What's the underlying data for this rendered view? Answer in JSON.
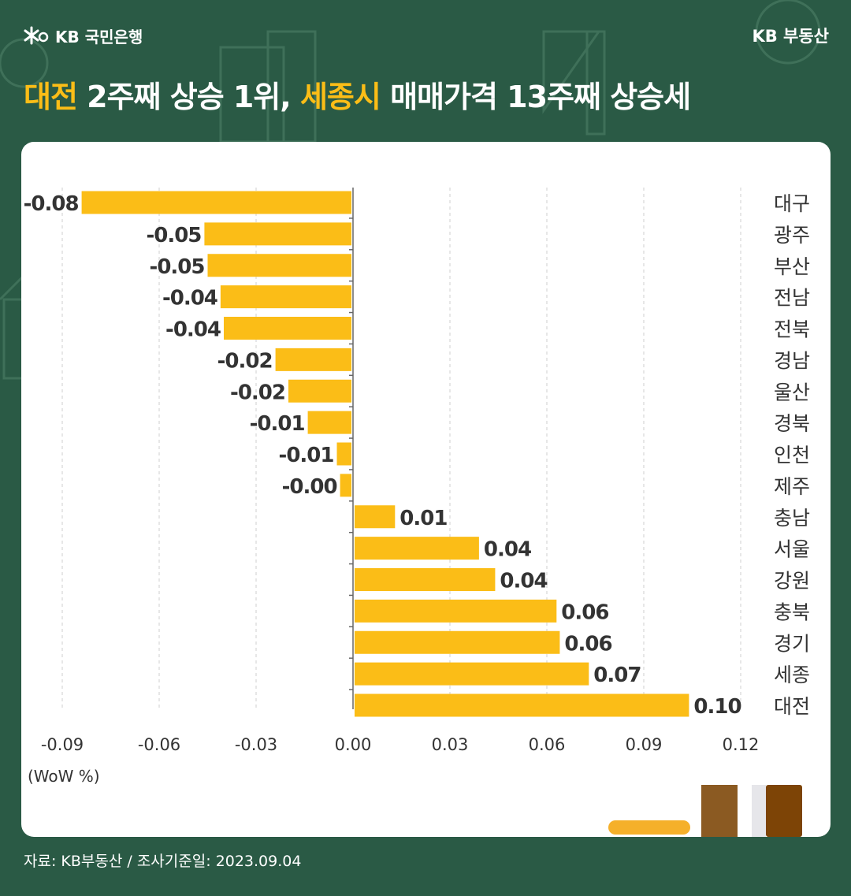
{
  "header": {
    "bank_logo_text": "KB 국민은행",
    "brand": "KB 부동산"
  },
  "title": {
    "part1": "대전",
    "part2": " 2주째 상승 1위, ",
    "part3": "세종시",
    "part4": " 매매가격 13주째 상승세"
  },
  "colors": {
    "background": "#2a5a45",
    "accent": "#fbbd17",
    "bar": "#fbbd17",
    "card": "#ffffff"
  },
  "chart_data": {
    "type": "bar",
    "orientation": "horizontal",
    "categories": [
      "대구",
      "광주",
      "부산",
      "전남",
      "전북",
      "경남",
      "울산",
      "경북",
      "인천",
      "제주",
      "충남",
      "서울",
      "강원",
      "충북",
      "경기",
      "세종",
      "대전"
    ],
    "values": [
      -0.084,
      -0.046,
      -0.045,
      -0.041,
      -0.04,
      -0.024,
      -0.02,
      -0.014,
      -0.005,
      -0.004,
      0.013,
      0.039,
      0.044,
      0.063,
      0.064,
      0.073,
      0.104
    ],
    "value_labels": [
      "-0.08",
      "-0.05",
      "-0.05",
      "-0.04",
      "-0.04",
      "-0.02",
      "-0.02",
      "-0.01",
      "-0.01",
      "-0.00",
      "0.01",
      "0.04",
      "0.04",
      "0.06",
      "0.06",
      "0.07",
      "0.10"
    ],
    "xticks": [
      "-0.09",
      "-0.06",
      "-0.03",
      "0.00",
      "0.03",
      "0.06",
      "0.09",
      "0.12"
    ],
    "xtick_values": [
      -0.09,
      -0.06,
      -0.03,
      0,
      0.03,
      0.06,
      0.09,
      0.12
    ],
    "xlim": [
      -0.09,
      0.12
    ],
    "unit_label": "(WoW %)",
    "grid": "vertical dashed",
    "category_labels_side": "right"
  },
  "footer": {
    "source": "자료: KB부동산 / 조사기준일: 2023.09.04"
  }
}
